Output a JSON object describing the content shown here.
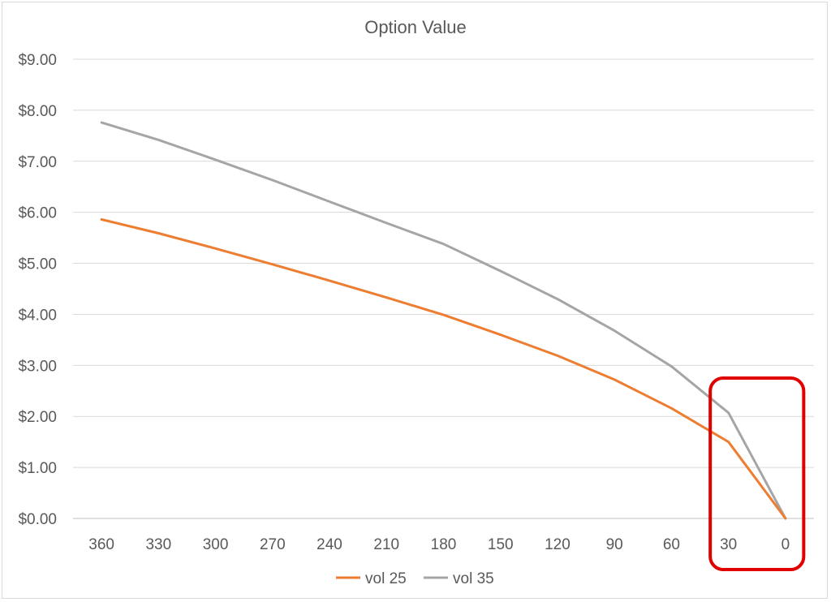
{
  "chart_data": {
    "type": "line",
    "title": "Option Value",
    "xlabel": "",
    "ylabel": "",
    "categories": [
      "360",
      "330",
      "300",
      "270",
      "240",
      "210",
      "180",
      "150",
      "120",
      "90",
      "60",
      "30",
      "0"
    ],
    "ylim": [
      0,
      9
    ],
    "yticks": [
      "$0.00",
      "$1.00",
      "$2.00",
      "$3.00",
      "$4.00",
      "$5.00",
      "$6.00",
      "$7.00",
      "$8.00",
      "$9.00"
    ],
    "grid": true,
    "legend_position": "bottom",
    "series": [
      {
        "name": "vol 25",
        "color": "#ed7d31",
        "values": [
          5.86,
          5.59,
          5.29,
          4.98,
          4.66,
          4.33,
          3.99,
          3.6,
          3.19,
          2.72,
          2.16,
          1.5,
          0.0
        ]
      },
      {
        "name": "vol 35",
        "color": "#a5a5a5",
        "values": [
          7.76,
          7.42,
          7.03,
          6.63,
          6.21,
          5.79,
          5.38,
          4.85,
          4.3,
          3.68,
          2.98,
          2.07,
          0.0
        ]
      }
    ],
    "highlight": {
      "shape": "rounded-rectangle",
      "color": "#e00000",
      "categories": [
        "30",
        "0"
      ]
    }
  }
}
